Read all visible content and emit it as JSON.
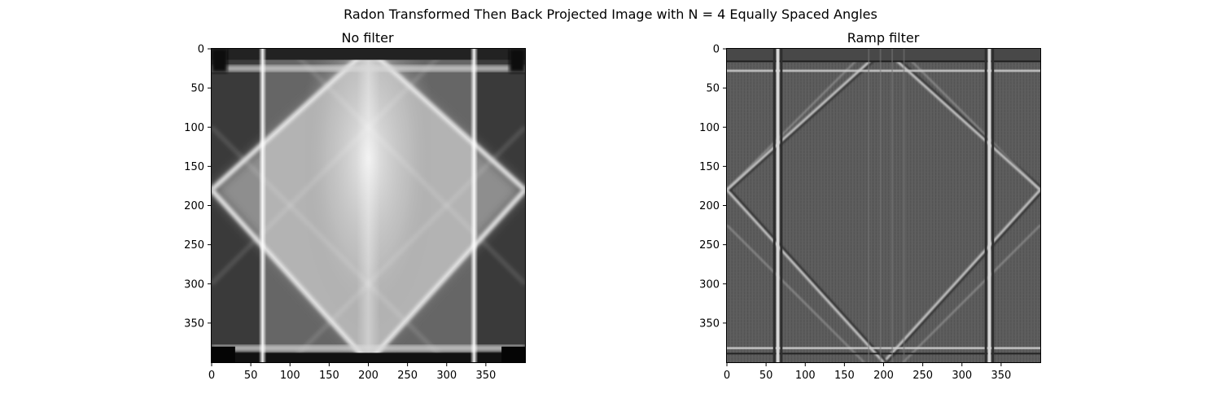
{
  "chart_data": [
    {
      "type": "heatmap",
      "title": "No filter",
      "suptitle": "Radon Transformed Then Back Projected Image with N = 4 Equally Spaced Angles",
      "colormap": "gray",
      "image_size": [
        400,
        400
      ],
      "xlim": [
        0,
        400
      ],
      "ylim": [
        400,
        0
      ],
      "xticks": [
        0,
        50,
        100,
        150,
        200,
        250,
        300,
        350
      ],
      "yticks": [
        0,
        50,
        100,
        150,
        200,
        250,
        300,
        350
      ],
      "features": {
        "vertical_bright_lines_x": [
          65,
          335
        ],
        "horizontal_bright_lines_y": [
          25,
          382
        ],
        "diamond_vertices": [
          [
            200,
            0
          ],
          [
            400,
            180
          ],
          [
            200,
            400
          ],
          [
            0,
            180
          ]
        ],
        "brightest_center_x": 200
      }
    },
    {
      "type": "heatmap",
      "title": "Ramp filter",
      "colormap": "gray",
      "image_size": [
        400,
        400
      ],
      "xlim": [
        0,
        400
      ],
      "ylim": [
        400,
        0
      ],
      "xticks": [
        0,
        50,
        100,
        150,
        200,
        250,
        300,
        350
      ],
      "yticks": [
        0,
        50,
        100,
        150,
        200,
        250,
        300,
        350
      ],
      "features": {
        "vertical_bright_lines_x": [
          65,
          335
        ],
        "horizontal_bright_lines_y": [
          28,
          382
        ],
        "diamond_vertices": [
          [
            200,
            0
          ],
          [
            400,
            180
          ],
          [
            200,
            400
          ],
          [
            0,
            180
          ]
        ]
      }
    }
  ],
  "colors": {
    "frame": "#000000",
    "background": "#ffffff"
  }
}
